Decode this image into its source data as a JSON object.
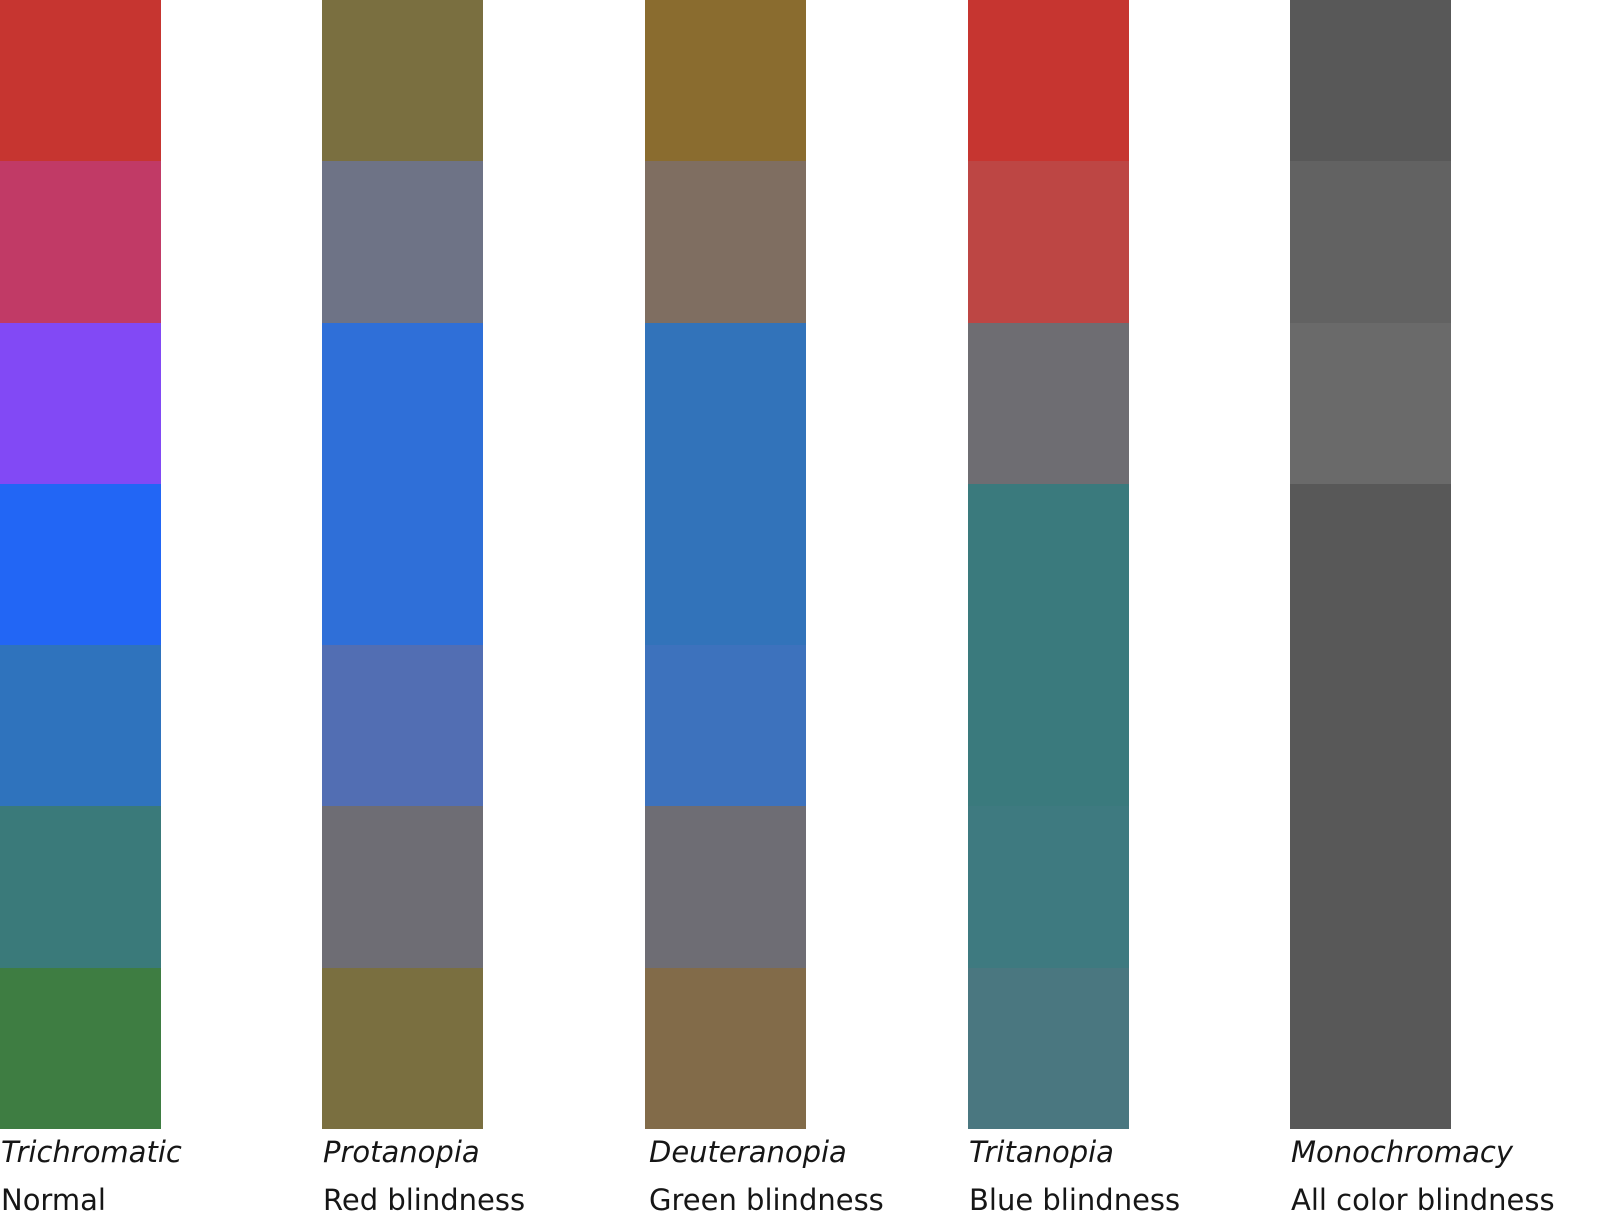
{
  "columns": [
    {
      "name": "Trichromatic",
      "description": "Normal",
      "swatches": [
        "#c63530",
        "#c13a66",
        "#8249f5",
        "#2266f5",
        "#2f73bd",
        "#3a7a7a",
        "#3e7d42"
      ]
    },
    {
      "name": "Protanopia",
      "description": "Red blindness",
      "swatches": [
        "#7a6f40",
        "#6e7386",
        "#2f6fd8",
        "#2f6fd8",
        "#526eb3",
        "#6e6d74",
        "#7a6f40"
      ]
    },
    {
      "name": "Deuteranopia",
      "description": "Green blindness",
      "swatches": [
        "#8a6c2f",
        "#7f6e61",
        "#3273ba",
        "#3273ba",
        "#3d72bd",
        "#6e6d74",
        "#826b49"
      ]
    },
    {
      "name": "Tritanopia",
      "description": "Blue blindness",
      "swatches": [
        "#c63530",
        "#bd4644",
        "#6e6d72",
        "#3a7a7d",
        "#3a7a7d",
        "#3e7a80",
        "#4a7780"
      ]
    },
    {
      "name": "Monochromacy",
      "description": "All color blindness",
      "swatches": [
        "#585858",
        "#626262",
        "#6a6a6a",
        "#585858",
        "#585858",
        "#585858",
        "#585858"
      ]
    }
  ]
}
